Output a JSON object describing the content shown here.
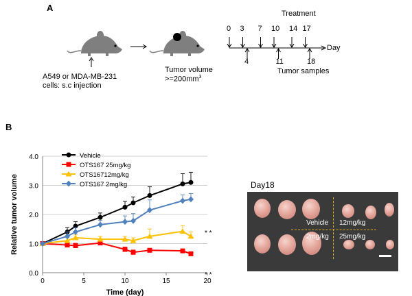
{
  "panel_a": {
    "label": "A",
    "cells_line1": "A549 or MDA-MB-231",
    "cells_line2": "cells: s.c injection",
    "tumor_line1": "Tumor volume",
    "tumor_line2": ">=200mm",
    "tumor_sup": "3",
    "treatment_title": "Treatment",
    "treatment_days": [
      "0",
      "3",
      "7",
      "10",
      "14",
      "17"
    ],
    "sample_days": [
      "4",
      "11",
      "18"
    ],
    "day_label": "Day",
    "samples_label": "Tumor samples"
  },
  "panel_b": {
    "label": "B",
    "photo_title": "Day18",
    "photo_labels": {
      "vehicle": "Vehicle",
      "d12": "12mg/kg",
      "d2": "2mg/kg",
      "d25": "25mg/kg"
    },
    "significance": "* *"
  },
  "colors": {
    "vehicle": "#000000",
    "ots25": "#ff0000",
    "ots12": "#ffc000",
    "ots2": "#4f81bd"
  },
  "chart_data": {
    "type": "line",
    "xlabel": "Time (day)",
    "ylabel": "Relative tumor volume",
    "xlim": [
      0,
      20
    ],
    "ylim": [
      0,
      4
    ],
    "xticks": [
      "0",
      "5",
      "10",
      "15",
      "20"
    ],
    "yticks": [
      "0.0",
      "1.0",
      "2.0",
      "3.0",
      "4.0"
    ],
    "x": [
      0,
      3,
      4,
      7,
      10,
      11,
      13,
      17,
      18
    ],
    "series": [
      {
        "name": "Vehicle",
        "color": "#000000",
        "marker": "circle",
        "values": [
          1.0,
          1.4,
          1.6,
          1.9,
          2.25,
          2.4,
          2.65,
          3.05,
          3.1
        ],
        "errors": [
          0.03,
          0.15,
          0.15,
          0.15,
          0.2,
          0.2,
          0.3,
          0.35,
          0.35
        ]
      },
      {
        "name": "OTS167 25mg/kg",
        "color": "#ff0000",
        "marker": "square",
        "values": [
          1.0,
          0.95,
          0.93,
          1.02,
          0.8,
          0.7,
          0.77,
          0.75,
          0.65
        ],
        "errors": [
          0.03,
          0.1,
          0.08,
          0.08,
          0.08,
          0.08,
          0.05,
          0.05,
          0.05
        ]
      },
      {
        "name": "OTS16712mg/kg",
        "color": "#ffc000",
        "marker": "triangle",
        "values": [
          1.0,
          1.1,
          1.2,
          1.15,
          1.15,
          1.1,
          1.25,
          1.42,
          1.25
        ],
        "errors": [
          0.03,
          0.1,
          0.1,
          0.1,
          0.1,
          0.1,
          0.25,
          0.2,
          0.15
        ]
      },
      {
        "name": "OTS167 2mg/kg",
        "color": "#4f81bd",
        "marker": "diamond",
        "values": [
          1.0,
          1.25,
          1.4,
          1.65,
          1.75,
          1.78,
          2.15,
          2.47,
          2.52
        ],
        "errors": [
          0.03,
          0.15,
          0.15,
          0.15,
          0.2,
          0.25,
          0.35,
          0.2,
          0.2
        ]
      }
    ]
  }
}
